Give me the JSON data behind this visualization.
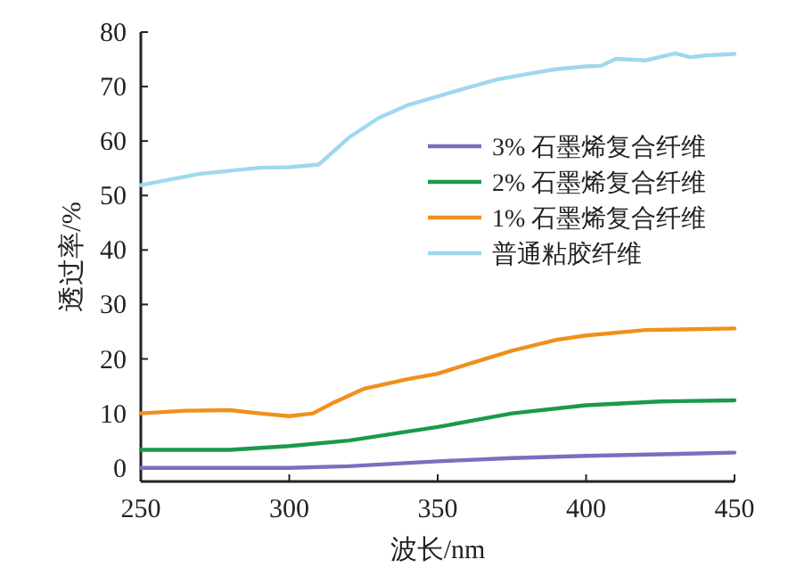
{
  "chart_data": {
    "type": "line",
    "xlabel": "波长/nm",
    "ylabel": "透过率/%",
    "xlim": [
      250,
      450
    ],
    "xticks": [
      250,
      300,
      350,
      400,
      450
    ],
    "ylim": [
      -2.5,
      80
    ],
    "yticks": [
      0,
      10,
      20,
      30,
      40,
      50,
      60,
      70,
      80
    ],
    "legend": "right",
    "grid": false,
    "line_style": "solid",
    "series": [
      {
        "name": "3% 石墨烯复合纤维",
        "color": "#7a6fbf",
        "x": [
          250,
          280,
          300,
          320,
          350,
          375,
          400,
          425,
          450
        ],
        "values": [
          0,
          0,
          0,
          0.3,
          1.2,
          1.8,
          2.2,
          2.5,
          2.8
        ]
      },
      {
        "name": "2% 石墨烯复合纤维",
        "color": "#1a9a4a",
        "x": [
          250,
          280,
          300,
          320,
          350,
          375,
          400,
          425,
          450
        ],
        "values": [
          3.3,
          3.3,
          4,
          5,
          7.5,
          10,
          11.5,
          12.2,
          12.4
        ]
      },
      {
        "name": "1% 石墨烯复合纤维",
        "color": "#f0901c",
        "x": [
          250,
          265,
          280,
          290,
          300,
          308,
          315,
          325,
          340,
          350,
          360,
          375,
          390,
          400,
          420,
          450
        ],
        "values": [
          10,
          10.5,
          10.6,
          10,
          9.5,
          10,
          12,
          14.5,
          16.3,
          17.3,
          19,
          21.5,
          23.5,
          24.3,
          25.3,
          25.6
        ]
      },
      {
        "name": "普通粘胶纤维",
        "color": "#9fd8f0",
        "x": [
          250,
          270,
          290,
          300,
          310,
          320,
          330,
          340,
          350,
          360,
          370,
          380,
          390,
          400,
          405,
          410,
          420,
          430,
          435,
          440,
          450
        ],
        "values": [
          51.9,
          54,
          55.1,
          55.2,
          55.7,
          60.6,
          64.2,
          66.6,
          68.2,
          69.8,
          71.3,
          72.3,
          73.2,
          73.7,
          73.8,
          75.1,
          74.8,
          76.1,
          75.4,
          75.7,
          76
        ]
      }
    ]
  }
}
